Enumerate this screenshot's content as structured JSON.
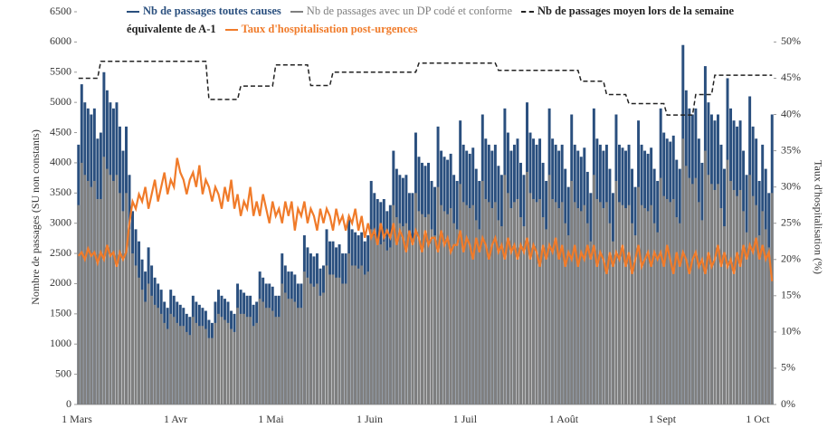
{
  "chart_data": {
    "type": "bar",
    "ylabel": "Nombre de passages (SU non constants)",
    "y2label": "Taux d'hospitalisation (%)",
    "ylim": [
      0,
      6500
    ],
    "yticks": [
      0,
      500,
      1000,
      1500,
      2000,
      2500,
      3000,
      3500,
      4000,
      4500,
      5000,
      5500,
      6000,
      6500
    ],
    "y2lim": [
      0,
      54.17
    ],
    "y2ticks": [
      {
        "value": 0,
        "label": "0%"
      },
      {
        "value": 5,
        "label": "5%"
      },
      {
        "value": 10,
        "label": "10%"
      },
      {
        "value": 15,
        "label": "15%"
      },
      {
        "value": 20,
        "label": "20%"
      },
      {
        "value": 25,
        "label": "25%"
      },
      {
        "value": 30,
        "label": "30%"
      },
      {
        "value": 35,
        "label": "35%"
      },
      {
        "value": 40,
        "label": "40%"
      },
      {
        "value": 45,
        "label": "45%"
      },
      {
        "value": 50,
        "label": "50%"
      }
    ],
    "categories": [
      "1 Mars",
      null,
      null,
      null,
      null,
      null,
      null,
      null,
      null,
      null,
      null,
      null,
      null,
      null,
      null,
      null,
      null,
      null,
      null,
      null,
      null,
      null,
      null,
      null,
      null,
      null,
      null,
      null,
      null,
      null,
      null,
      "1 Avr",
      null,
      null,
      null,
      null,
      null,
      null,
      null,
      null,
      null,
      null,
      null,
      null,
      null,
      null,
      null,
      null,
      null,
      null,
      null,
      null,
      null,
      null,
      null,
      null,
      null,
      null,
      null,
      null,
      null,
      "1 Mai",
      null,
      null,
      null,
      null,
      null,
      null,
      null,
      null,
      null,
      null,
      null,
      null,
      null,
      null,
      null,
      null,
      null,
      null,
      null,
      null,
      null,
      null,
      null,
      null,
      null,
      null,
      null,
      null,
      null,
      null,
      "1 Juin",
      null,
      null,
      null,
      null,
      null,
      null,
      null,
      null,
      null,
      null,
      null,
      null,
      null,
      null,
      null,
      null,
      null,
      null,
      null,
      null,
      null,
      null,
      null,
      null,
      null,
      null,
      null,
      null,
      null,
      "1 Juil",
      null,
      null,
      null,
      null,
      null,
      null,
      null,
      null,
      null,
      null,
      null,
      null,
      null,
      null,
      null,
      null,
      null,
      null,
      null,
      null,
      null,
      null,
      null,
      null,
      null,
      null,
      null,
      null,
      null,
      null,
      "1 Août",
      null,
      null,
      null,
      null,
      null,
      null,
      null,
      null,
      null,
      null,
      null,
      null,
      null,
      null,
      null,
      null,
      null,
      null,
      null,
      null,
      null,
      null,
      null,
      null,
      null,
      null,
      null,
      null,
      null,
      null,
      "1 Sept",
      null,
      null,
      null,
      null,
      null,
      null,
      null,
      null,
      null,
      null,
      null,
      null,
      null,
      null,
      null,
      null,
      null,
      null,
      null,
      null,
      null,
      null,
      null,
      null,
      null,
      null,
      null,
      null,
      null,
      "1 Oct",
      null,
      null,
      null,
      null
    ],
    "series": [
      {
        "name": "Nb de passages toutes causes",
        "type": "bar",
        "color": "#2a4f7e",
        "values": [
          4300,
          5300,
          5000,
          4900,
          4800,
          4900,
          4400,
          4500,
          5500,
          5200,
          5000,
          4900,
          5000,
          4600,
          4200,
          4600,
          3800,
          3200,
          2900,
          2700,
          2400,
          2200,
          2600,
          2300,
          2100,
          2000,
          1900,
          1700,
          1600,
          1900,
          1800,
          1700,
          1650,
          1600,
          1500,
          1450,
          1800,
          1700,
          1650,
          1600,
          1550,
          1400,
          1350,
          1700,
          1900,
          1800,
          1750,
          1700,
          1550,
          1500,
          2000,
          1900,
          1850,
          1800,
          1800,
          1650,
          1700,
          2200,
          2100,
          2000,
          2000,
          1950,
          1800,
          1800,
          2500,
          2300,
          2200,
          2200,
          2150,
          2000,
          2000,
          2800,
          2600,
          2500,
          2450,
          2500,
          2250,
          2300,
          2900,
          2700,
          2700,
          2600,
          2650,
          2500,
          2500,
          3100,
          2900,
          2850,
          2800,
          2850,
          2700,
          2800,
          3700,
          3500,
          3400,
          3350,
          3400,
          3200,
          3300,
          4200,
          3900,
          3800,
          3750,
          3800,
          3500,
          3500,
          4500,
          4100,
          4000,
          3950,
          4000,
          3700,
          3600,
          4600,
          4200,
          4100,
          4050,
          4150,
          3800,
          3700,
          4700,
          4300,
          4200,
          4150,
          4250,
          3900,
          3700,
          4800,
          4400,
          4300,
          4200,
          4300,
          3950,
          3800,
          4900,
          4500,
          4200,
          4300,
          4400,
          4000,
          3800,
          5000,
          4500,
          4400,
          4300,
          4400,
          4000,
          3700,
          4900,
          4400,
          4300,
          4200,
          4300,
          3900,
          3600,
          4800,
          4300,
          4200,
          4100,
          4250,
          3850,
          3500,
          4900,
          4400,
          4300,
          4200,
          4300,
          3900,
          3500,
          4800,
          4300,
          4250,
          4200,
          4300,
          3900,
          3600,
          4700,
          4300,
          4200,
          4150,
          4250,
          3900,
          3700,
          4900,
          4500,
          4400,
          4350,
          4450,
          4050,
          3900,
          5950,
          5200,
          4900,
          4800,
          4900,
          4400,
          4000,
          5600,
          5000,
          4800,
          4700,
          4800,
          4300,
          3900,
          5400,
          4900,
          4700,
          4600,
          4700,
          4200,
          3800,
          5100,
          4600,
          4400,
          3700,
          4300,
          3900,
          3500,
          4800
        ]
      },
      {
        "name": "Nb de passages avec un DP codé et conforme",
        "type": "bar",
        "color": "#7f7f7f",
        "values": [
          3300,
          4000,
          3800,
          3700,
          3600,
          3700,
          3400,
          3400,
          4100,
          3900,
          3800,
          3700,
          3800,
          3500,
          3200,
          3500,
          2900,
          2500,
          2300,
          2100,
          1900,
          1700,
          2000,
          1800,
          1650,
          1600,
          1500,
          1350,
          1250,
          1500,
          1450,
          1350,
          1300,
          1300,
          1200,
          1150,
          1450,
          1350,
          1300,
          1300,
          1250,
          1100,
          1100,
          1350,
          1500,
          1450,
          1400,
          1350,
          1250,
          1200,
          1600,
          1500,
          1500,
          1450,
          1450,
          1300,
          1350,
          1750,
          1700,
          1600,
          1600,
          1550,
          1450,
          1450,
          2000,
          1850,
          1750,
          1750,
          1700,
          1600,
          1600,
          2200,
          2100,
          2000,
          1950,
          2000,
          1800,
          1850,
          2300,
          2150,
          2150,
          2100,
          2100,
          2000,
          2000,
          2500,
          2300,
          2300,
          2250,
          2300,
          2150,
          2200,
          2900,
          2800,
          2700,
          2650,
          2700,
          2550,
          2600,
          3300,
          3100,
          3000,
          2950,
          3000,
          2800,
          2750,
          3500,
          3200,
          3150,
          3100,
          3150,
          2900,
          2800,
          3600,
          3300,
          3200,
          3150,
          3250,
          3000,
          2900,
          3650,
          3350,
          3300,
          3250,
          3300,
          3050,
          2900,
          3700,
          3400,
          3350,
          3250,
          3350,
          3050,
          2950,
          3800,
          3500,
          3250,
          3350,
          3400,
          3100,
          2950,
          3850,
          3500,
          3400,
          3350,
          3400,
          3100,
          2900,
          3800,
          3400,
          3350,
          3250,
          3350,
          3000,
          2800,
          3700,
          3350,
          3250,
          3200,
          3300,
          3000,
          2700,
          3800,
          3400,
          3350,
          3250,
          3350,
          3000,
          2700,
          3700,
          3350,
          3300,
          3250,
          3300,
          3000,
          2800,
          3600,
          3300,
          3250,
          3200,
          3300,
          3000,
          2850,
          3750,
          3450,
          3400,
          3350,
          3400,
          3100,
          3000,
          4400,
          3950,
          3750,
          3650,
          3750,
          3350,
          3050,
          4200,
          3800,
          3650,
          3550,
          3650,
          3250,
          2950,
          4050,
          3700,
          3550,
          3450,
          3550,
          3200,
          2850,
          3800,
          3450,
          3300,
          2800,
          3200,
          2900,
          2600,
          3500
        ]
      },
      {
        "name": "Nb de passages moyen lors de la semaine équivalente de A-1",
        "type": "line",
        "dashed": true,
        "color": "#222222",
        "values": [
          5400,
          5400,
          5400,
          5400,
          5400,
          5400,
          5400,
          5680,
          5680,
          5680,
          5680,
          5680,
          5680,
          5680,
          5680,
          5680,
          5680,
          5680,
          5680,
          5680,
          5680,
          5680,
          5680,
          5680,
          5680,
          5680,
          5680,
          5680,
          5680,
          5680,
          5680,
          5680,
          5680,
          5680,
          5680,
          5680,
          5680,
          5680,
          5680,
          5680,
          5680,
          5050,
          5050,
          5050,
          5050,
          5050,
          5050,
          5050,
          5050,
          5050,
          5050,
          5270,
          5270,
          5270,
          5270,
          5270,
          5270,
          5270,
          5270,
          5270,
          5270,
          5270,
          5620,
          5620,
          5620,
          5620,
          5620,
          5620,
          5620,
          5620,
          5620,
          5620,
          5620,
          5280,
          5280,
          5280,
          5280,
          5280,
          5280,
          5280,
          5500,
          5500,
          5500,
          5500,
          5500,
          5500,
          5500,
          5500,
          5500,
          5500,
          5500,
          5500,
          5500,
          5500,
          5500,
          5500,
          5500,
          5500,
          5500,
          5500,
          5500,
          5500,
          5500,
          5500,
          5500,
          5500,
          5500,
          5650,
          5650,
          5650,
          5650,
          5650,
          5650,
          5650,
          5650,
          5650,
          5650,
          5650,
          5650,
          5650,
          5650,
          5650,
          5650,
          5650,
          5650,
          5650,
          5650,
          5650,
          5650,
          5650,
          5650,
          5650,
          5530,
          5530,
          5530,
          5530,
          5530,
          5530,
          5530,
          5530,
          5530,
          5530,
          5530,
          5530,
          5530,
          5530,
          5530,
          5530,
          5530,
          5530,
          5530,
          5530,
          5530,
          5530,
          5530,
          5530,
          5530,
          5530,
          5350,
          5350,
          5350,
          5350,
          5350,
          5350,
          5350,
          5350,
          5130,
          5130,
          5130,
          5130,
          5130,
          5130,
          5130,
          4980,
          4980,
          4980,
          4980,
          4980,
          4980,
          4980,
          4980,
          4980,
          4980,
          4980,
          4980,
          4790,
          4790,
          4790,
          4790,
          4790,
          4790,
          4790,
          4790,
          4790,
          5130,
          5130,
          5130,
          5130,
          5130,
          5130,
          5450,
          5450,
          5450,
          5450,
          5450,
          5450,
          5450,
          5450,
          5450,
          5450,
          5450,
          5450,
          5450,
          5450,
          5450,
          5450,
          5450,
          5450,
          5450
        ]
      },
      {
        "name": "Taux d'hospitalisation post-urgences",
        "type": "line",
        "axis": "y2",
        "color": "#f07b2a",
        "values": [
          20.5,
          21,
          20,
          21.5,
          20.5,
          21,
          19.5,
          21,
          20,
          22,
          20.5,
          21,
          19,
          21,
          20,
          21,
          25,
          28,
          27,
          29,
          28,
          30,
          27,
          29,
          31,
          28,
          30,
          32,
          29,
          31,
          30,
          34,
          32,
          31,
          29,
          31,
          32,
          30,
          33,
          29,
          31,
          30,
          28,
          30,
          29,
          27,
          30,
          28,
          31,
          27,
          29,
          26,
          28,
          27,
          30,
          26,
          28,
          26,
          29,
          27,
          25,
          28,
          26,
          27,
          25,
          28,
          26,
          28,
          24,
          27,
          26,
          28,
          25,
          27,
          26,
          24,
          27,
          25,
          27,
          26,
          24,
          27,
          25,
          26,
          24,
          26,
          25,
          27,
          24,
          26,
          23,
          25,
          23,
          24,
          22,
          25,
          23,
          24,
          23,
          25,
          22,
          24,
          23,
          21,
          24,
          22,
          24,
          23,
          21,
          24,
          22,
          23,
          23,
          21,
          24,
          22,
          23,
          21,
          22,
          22,
          24,
          21,
          23,
          22,
          20,
          23,
          21,
          23,
          22,
          20,
          22,
          23,
          21,
          22,
          20,
          23,
          21,
          22,
          20,
          22,
          21,
          23,
          20,
          22,
          21,
          19,
          22,
          20,
          22,
          21,
          23,
          20,
          22,
          19,
          21,
          20,
          22,
          19,
          21,
          20,
          22,
          20,
          22,
          19,
          21,
          20,
          18,
          21,
          19,
          21,
          20,
          22,
          19,
          21,
          18,
          20,
          22,
          19,
          20,
          21,
          19,
          21,
          20,
          21,
          19,
          22,
          20,
          18,
          21,
          19,
          21,
          20,
          18,
          20,
          21,
          19,
          20,
          18,
          21,
          19,
          20,
          22,
          19,
          21,
          19,
          20,
          18,
          21,
          19,
          22,
          20,
          22,
          21,
          23,
          20,
          22,
          20,
          21,
          17
        ]
      }
    ]
  }
}
